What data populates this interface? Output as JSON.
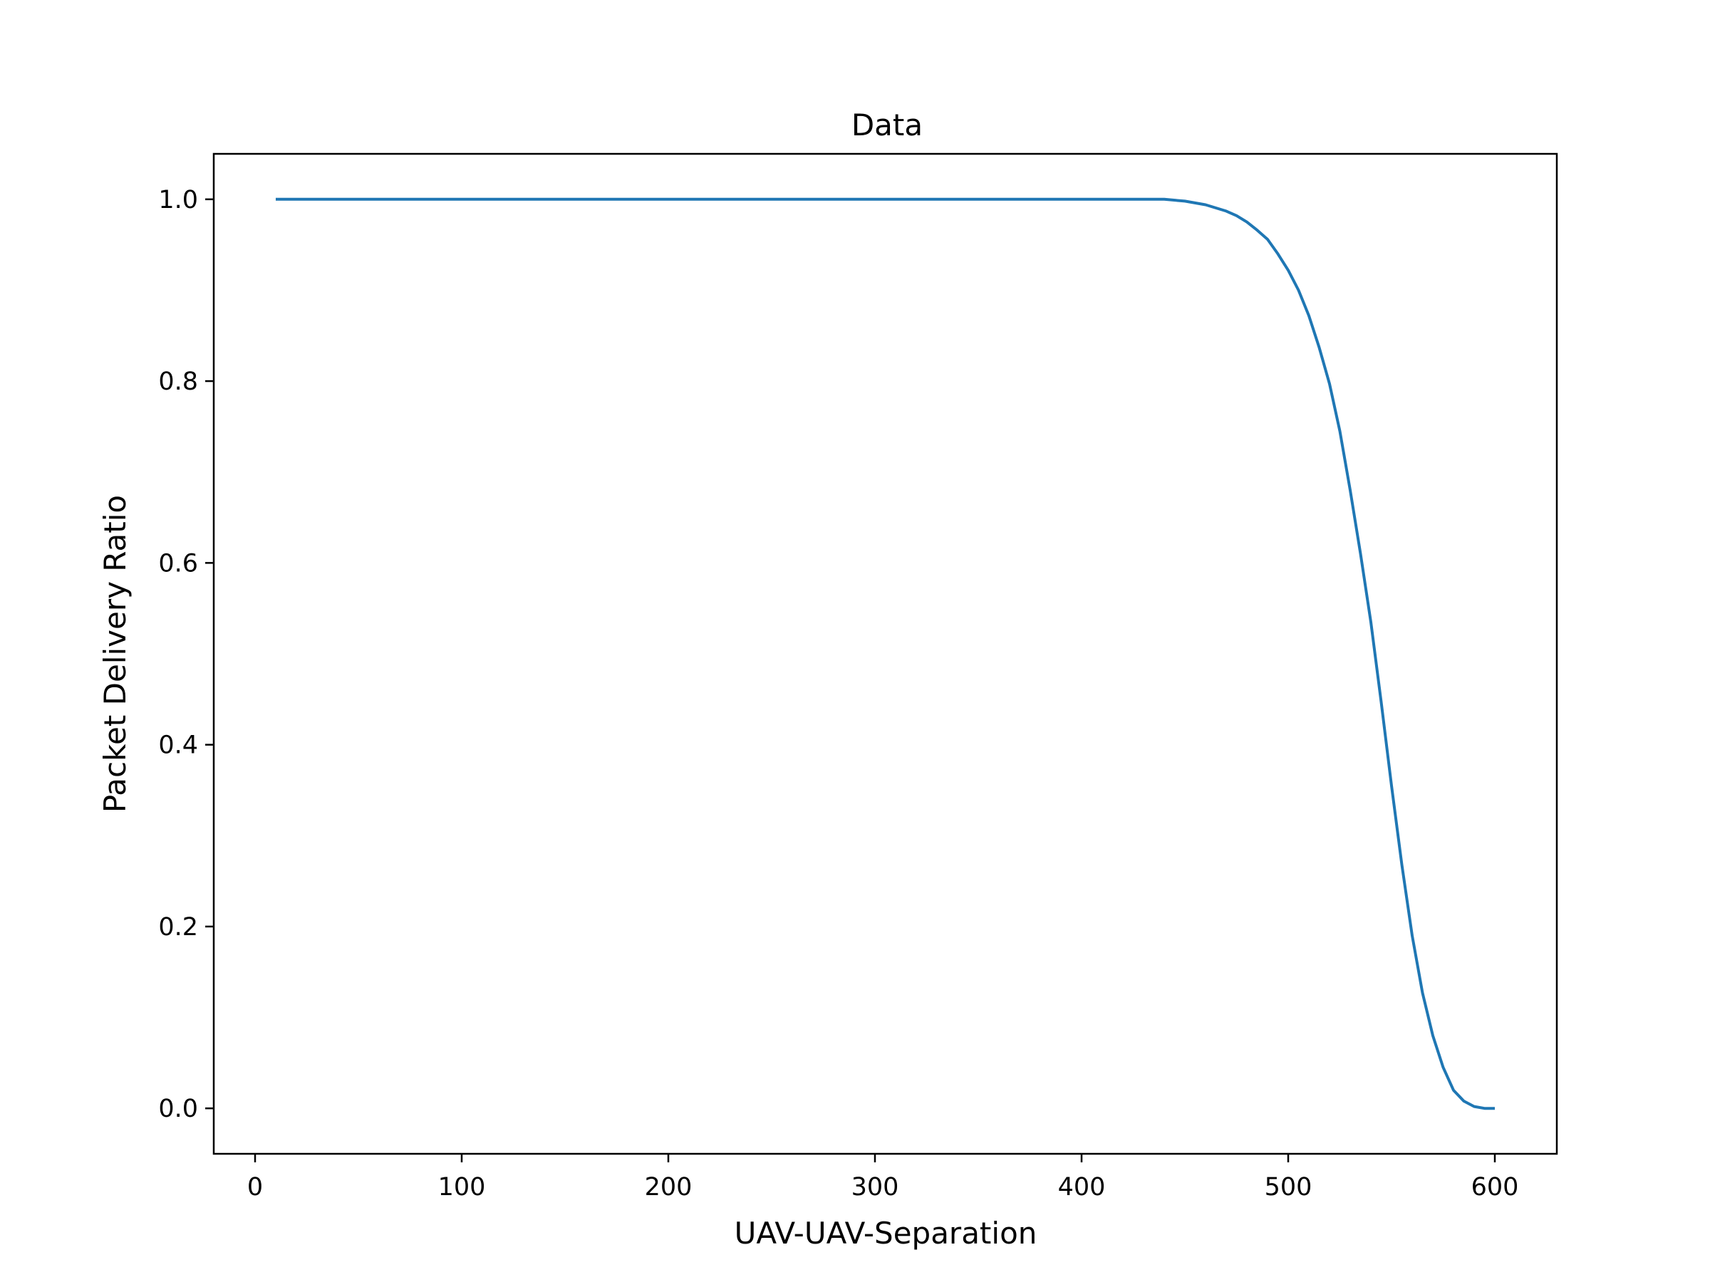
{
  "chart_data": {
    "type": "line",
    "title": "Data",
    "xlabel": "UAV-UAV-Separation",
    "ylabel": "Packet Delivery Ratio",
    "xlim": [
      -20,
      630
    ],
    "ylim": [
      -0.05,
      1.05
    ],
    "xticks": [
      0,
      100,
      200,
      300,
      400,
      500,
      600
    ],
    "yticks": [
      0.0,
      0.2,
      0.4,
      0.6,
      0.8,
      1.0
    ],
    "xtick_labels": [
      "0",
      "100",
      "200",
      "300",
      "400",
      "500",
      "600"
    ],
    "ytick_labels": [
      "0.0",
      "0.2",
      "0.4",
      "0.6",
      "0.8",
      "1.0"
    ],
    "grid": false,
    "series": [
      {
        "color": "#1f77b4",
        "x": [
          10,
          100,
          200,
          300,
          400,
          440,
          450,
          460,
          470,
          475,
          480,
          485,
          490,
          495,
          500,
          505,
          510,
          515,
          520,
          525,
          530,
          535,
          540,
          545,
          550,
          555,
          560,
          565,
          570,
          575,
          580,
          585,
          590,
          595,
          600
        ],
        "y": [
          1.0,
          1.0,
          1.0,
          1.0,
          1.0,
          1.0,
          0.998,
          0.994,
          0.987,
          0.982,
          0.975,
          0.966,
          0.956,
          0.94,
          0.922,
          0.9,
          0.872,
          0.837,
          0.797,
          0.745,
          0.68,
          0.61,
          0.535,
          0.447,
          0.355,
          0.268,
          0.19,
          0.127,
          0.08,
          0.045,
          0.02,
          0.008,
          0.002,
          0.0,
          0.0
        ]
      }
    ]
  }
}
